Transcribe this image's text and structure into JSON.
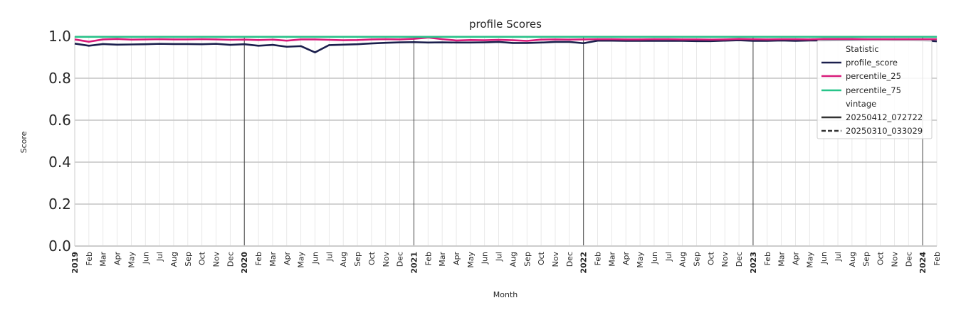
{
  "chart_data": {
    "type": "line",
    "title": "profile Scores",
    "xlabel": "Month",
    "ylabel": "Score",
    "ylim": [
      0,
      1
    ],
    "yticks": [
      "0.0",
      "0.2",
      "0.4",
      "0.6",
      "0.8",
      "1.0"
    ],
    "grid": true,
    "legend_position": "top-right",
    "x": [
      "2019",
      "Feb",
      "Mar",
      "Apr",
      "May",
      "Jun",
      "Jul",
      "Aug",
      "Sep",
      "Oct",
      "Nov",
      "Dec",
      "2020",
      "Feb",
      "Mar",
      "Apr",
      "May",
      "Jun",
      "Jul",
      "Aug",
      "Sep",
      "Oct",
      "Nov",
      "Dec",
      "2021",
      "Feb",
      "Mar",
      "Apr",
      "May",
      "Jun",
      "Jul",
      "Aug",
      "Sep",
      "Oct",
      "Nov",
      "Dec",
      "2022",
      "Feb",
      "Mar",
      "Apr",
      "May",
      "Jun",
      "Jul",
      "Aug",
      "Sep",
      "Oct",
      "Nov",
      "Dec",
      "2023",
      "Feb",
      "Mar",
      "Apr",
      "May",
      "Jun",
      "Jul",
      "Aug",
      "Sep",
      "Oct",
      "Nov",
      "Dec",
      "2024",
      "Feb"
    ],
    "year_ticks": [
      "2019",
      "2020",
      "2021",
      "2022",
      "2023",
      "2024"
    ],
    "series": [
      {
        "name": "profile_score",
        "color": "#1b1f4d",
        "values": [
          0.965,
          0.955,
          0.963,
          0.96,
          0.961,
          0.962,
          0.964,
          0.963,
          0.963,
          0.962,
          0.964,
          0.959,
          0.962,
          0.955,
          0.959,
          0.95,
          0.953,
          0.923,
          0.958,
          0.96,
          0.962,
          0.966,
          0.969,
          0.971,
          0.972,
          0.97,
          0.971,
          0.97,
          0.97,
          0.971,
          0.973,
          0.968,
          0.968,
          0.97,
          0.973,
          0.973,
          0.967,
          0.979,
          0.979,
          0.978,
          0.978,
          0.978,
          0.978,
          0.978,
          0.977,
          0.977,
          0.979,
          0.981,
          0.978,
          0.978,
          0.98,
          0.978,
          0.98,
          0.98,
          0.981,
          0.982,
          0.982,
          0.983,
          0.981,
          0.981,
          0.98,
          0.976
        ]
      },
      {
        "name": "percentile_25",
        "color": "#d81b7a",
        "values": [
          0.985,
          0.974,
          0.985,
          0.987,
          0.984,
          0.985,
          0.986,
          0.985,
          0.985,
          0.986,
          0.985,
          0.983,
          0.984,
          0.982,
          0.984,
          0.979,
          0.985,
          0.985,
          0.983,
          0.981,
          0.982,
          0.985,
          0.986,
          0.985,
          0.988,
          0.994,
          0.986,
          0.98,
          0.982,
          0.981,
          0.983,
          0.981,
          0.978,
          0.984,
          0.985,
          0.984,
          0.985,
          0.986,
          0.986,
          0.985,
          0.985,
          0.986,
          0.986,
          0.985,
          0.985,
          0.984,
          0.985,
          0.987,
          0.986,
          0.985,
          0.986,
          0.986,
          0.985,
          0.987,
          0.987,
          0.987,
          0.986,
          0.986,
          0.986,
          0.986,
          0.986,
          0.986
        ]
      },
      {
        "name": "percentile_75",
        "color": "#27c489",
        "values": [
          0.997,
          0.997,
          0.997,
          0.997,
          0.997,
          0.997,
          0.997,
          0.997,
          0.997,
          0.997,
          0.997,
          0.997,
          0.997,
          0.997,
          0.997,
          0.997,
          0.997,
          0.997,
          0.997,
          0.997,
          0.997,
          0.997,
          0.997,
          0.997,
          0.997,
          0.997,
          0.997,
          0.997,
          0.997,
          0.997,
          0.997,
          0.997,
          0.997,
          0.997,
          0.997,
          0.997,
          0.997,
          0.997,
          0.997,
          0.997,
          0.997,
          0.997,
          0.997,
          0.997,
          0.997,
          0.997,
          0.997,
          0.997,
          0.997,
          0.997,
          0.997,
          0.997,
          0.997,
          0.997,
          0.997,
          0.997,
          0.997,
          0.997,
          0.997,
          0.997,
          0.997,
          0.997
        ]
      }
    ],
    "legend": {
      "statistic_title": "Statistic",
      "statistic_items": [
        "profile_score",
        "percentile_25",
        "percentile_75"
      ],
      "vintage_title": "vintage",
      "vintage_items": [
        {
          "label": "20250412_072722",
          "style": "solid"
        },
        {
          "label": "20250310_033029",
          "style": "dashed"
        }
      ]
    }
  }
}
